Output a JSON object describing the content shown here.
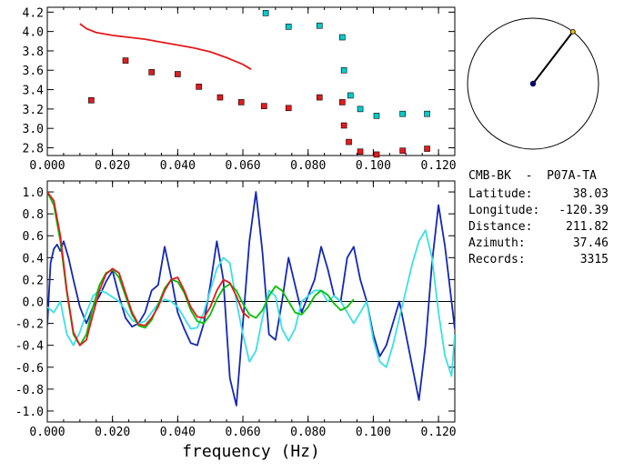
{
  "chart_data": [
    {
      "type": "scatter",
      "title": "",
      "xlabel": "",
      "ylabel": "",
      "xlim": [
        0.0,
        0.125
      ],
      "ylim": [
        2.72,
        4.25
      ],
      "x_ticks": [
        "0.000",
        "0.020",
        "0.040",
        "0.060",
        "0.080",
        "0.100",
        "0.120"
      ],
      "y_ticks": [
        "2.8",
        "3.0",
        "3.2",
        "3.4",
        "3.6",
        "3.8",
        "4.0",
        "4.2"
      ],
      "series": [
        {
          "kind": "line",
          "color": "#e41a1c",
          "x": [
            0.01,
            0.012,
            0.015,
            0.02,
            0.025,
            0.03,
            0.035,
            0.04,
            0.045,
            0.05,
            0.055,
            0.06,
            0.0625
          ],
          "y": [
            4.08,
            4.03,
            3.99,
            3.96,
            3.94,
            3.92,
            3.89,
            3.86,
            3.83,
            3.79,
            3.73,
            3.66,
            3.61
          ]
        },
        {
          "kind": "markers",
          "color": "#e41a1c",
          "x": [
            0.0135,
            0.024,
            0.032,
            0.04,
            0.0465,
            0.053,
            0.0595,
            0.0665,
            0.074,
            0.0835,
            0.0905,
            0.091,
            0.0925,
            0.096,
            0.101,
            0.109,
            0.1165
          ],
          "y": [
            3.29,
            3.7,
            3.58,
            3.56,
            3.43,
            3.32,
            3.27,
            3.23,
            3.21,
            3.32,
            3.27,
            3.03,
            2.86,
            2.76,
            2.73,
            2.77,
            2.79
          ]
        },
        {
          "kind": "markers",
          "color": "#00cccc",
          "x": [
            0.067,
            0.074,
            0.0835,
            0.0905,
            0.091,
            0.093,
            0.096,
            0.101,
            0.109,
            0.1165
          ],
          "y": [
            4.19,
            4.05,
            4.06,
            3.94,
            3.6,
            3.34,
            3.2,
            3.13,
            3.15,
            3.15
          ]
        }
      ]
    },
    {
      "type": "line",
      "title": "",
      "xlabel": "frequency (Hz)",
      "ylabel": "",
      "xlim": [
        0.0,
        0.125
      ],
      "ylim": [
        -1.1,
        1.1
      ],
      "x_ticks": [
        "0.000",
        "0.020",
        "0.040",
        "0.060",
        "0.080",
        "0.100",
        "0.120"
      ],
      "y_ticks": [
        "-1.0",
        "-0.8",
        "-0.6",
        "-0.4",
        "-0.2",
        "0.0",
        "0.2",
        "0.4",
        "0.6",
        "0.8",
        "1.0"
      ],
      "zero_line": true,
      "series": [
        {
          "color": "#1428b4",
          "x": [
            0.0,
            0.001,
            0.002,
            0.003,
            0.004,
            0.005,
            0.0065,
            0.008,
            0.01,
            0.012,
            0.014,
            0.016,
            0.018,
            0.02,
            0.022,
            0.024,
            0.026,
            0.028,
            0.03,
            0.032,
            0.034,
            0.036,
            0.038,
            0.04,
            0.042,
            0.044,
            0.046,
            0.048,
            0.05,
            0.052,
            0.054,
            0.056,
            0.058,
            0.06,
            0.062,
            0.064,
            0.066,
            0.068,
            0.07,
            0.072,
            0.074,
            0.076,
            0.078,
            0.08,
            0.082,
            0.084,
            0.086,
            0.088,
            0.09,
            0.092,
            0.094,
            0.096,
            0.098,
            0.1,
            0.102,
            0.104,
            0.106,
            0.108,
            0.11,
            0.112,
            0.114,
            0.116,
            0.118,
            0.12,
            0.122,
            0.124,
            0.125
          ],
          "y": [
            -0.22,
            0.35,
            0.48,
            0.52,
            0.46,
            0.55,
            0.4,
            0.2,
            -0.05,
            -0.2,
            -0.05,
            0.05,
            0.18,
            0.28,
            0.05,
            -0.15,
            -0.23,
            -0.2,
            -0.1,
            0.1,
            0.15,
            0.5,
            0.22,
            -0.1,
            -0.25,
            -0.38,
            -0.4,
            -0.2,
            0.15,
            0.55,
            0.2,
            -0.7,
            -0.95,
            -0.2,
            0.55,
            1.0,
            0.45,
            -0.3,
            -0.35,
            0.0,
            0.4,
            0.15,
            -0.1,
            0.05,
            0.2,
            0.5,
            0.3,
            0.05,
            0.0,
            0.4,
            0.5,
            0.2,
            0.0,
            -0.3,
            -0.5,
            -0.4,
            -0.2,
            0.0,
            -0.3,
            -0.6,
            -0.9,
            -0.4,
            0.35,
            0.88,
            0.5,
            0.0,
            -0.25
          ]
        },
        {
          "color": "#3ae0e8",
          "x": [
            0.0,
            0.002,
            0.004,
            0.006,
            0.008,
            0.01,
            0.012,
            0.014,
            0.016,
            0.018,
            0.02,
            0.022,
            0.024,
            0.026,
            0.028,
            0.03,
            0.032,
            0.034,
            0.036,
            0.038,
            0.04,
            0.042,
            0.044,
            0.046,
            0.048,
            0.05,
            0.052,
            0.054,
            0.056,
            0.058,
            0.06,
            0.062,
            0.064,
            0.066,
            0.068,
            0.07,
            0.072,
            0.074,
            0.076,
            0.078,
            0.08,
            0.082,
            0.084,
            0.086,
            0.088,
            0.09,
            0.092,
            0.094,
            0.096,
            0.098,
            0.1,
            0.102,
            0.104,
            0.106,
            0.108,
            0.11,
            0.112,
            0.114,
            0.116,
            0.118,
            0.12,
            0.122,
            0.124,
            0.125
          ],
          "y": [
            -0.05,
            -0.1,
            0.0,
            -0.3,
            -0.4,
            -0.28,
            -0.1,
            0.05,
            0.1,
            0.08,
            0.04,
            0.0,
            -0.08,
            -0.17,
            -0.2,
            -0.18,
            -0.1,
            -0.02,
            0.02,
            0.0,
            -0.05,
            -0.15,
            -0.25,
            -0.24,
            -0.1,
            0.1,
            0.3,
            0.4,
            0.35,
            0.0,
            -0.3,
            -0.55,
            -0.45,
            -0.15,
            0.1,
            0.05,
            -0.25,
            -0.36,
            -0.25,
            0.0,
            0.05,
            0.1,
            0.1,
            0.0,
            0.05,
            0.0,
            -0.1,
            -0.2,
            -0.1,
            0.0,
            -0.35,
            -0.55,
            -0.6,
            -0.4,
            -0.15,
            0.1,
            0.35,
            0.55,
            0.65,
            0.4,
            -0.1,
            -0.5,
            -0.68,
            -0.3
          ]
        },
        {
          "color": "#00c000",
          "x": [
            0.0,
            0.002,
            0.004,
            0.006,
            0.008,
            0.01,
            0.012,
            0.014,
            0.016,
            0.018,
            0.02,
            0.022,
            0.024,
            0.026,
            0.028,
            0.03,
            0.032,
            0.034,
            0.036,
            0.038,
            0.04,
            0.042,
            0.044,
            0.046,
            0.048,
            0.05,
            0.052,
            0.054,
            0.056,
            0.058,
            0.06,
            0.062,
            0.064,
            0.066,
            0.068,
            0.07,
            0.072,
            0.074,
            0.076,
            0.078,
            0.08,
            0.082,
            0.084,
            0.086,
            0.088,
            0.09,
            0.092,
            0.094
          ],
          "y": [
            1.0,
            0.88,
            0.55,
            0.08,
            -0.3,
            -0.4,
            -0.3,
            -0.05,
            0.15,
            0.26,
            0.29,
            0.22,
            0.05,
            -0.12,
            -0.22,
            -0.24,
            -0.17,
            -0.03,
            0.12,
            0.2,
            0.18,
            0.08,
            -0.08,
            -0.18,
            -0.2,
            -0.12,
            0.02,
            0.12,
            0.16,
            0.1,
            -0.02,
            -0.12,
            -0.15,
            -0.08,
            0.05,
            0.14,
            0.1,
            0.0,
            -0.1,
            -0.12,
            -0.05,
            0.05,
            0.1,
            0.06,
            -0.02,
            -0.08,
            -0.05,
            0.02
          ]
        },
        {
          "color": "#e41a1c",
          "x": [
            0.0,
            0.002,
            0.004,
            0.006,
            0.008,
            0.01,
            0.012,
            0.014,
            0.016,
            0.018,
            0.02,
            0.022,
            0.024,
            0.026,
            0.028,
            0.03,
            0.032,
            0.034,
            0.036,
            0.038,
            0.04,
            0.042,
            0.044,
            0.046,
            0.048,
            0.05,
            0.052,
            0.054,
            0.056,
            0.058,
            0.06,
            0.062
          ],
          "y": [
            1.0,
            0.92,
            0.6,
            0.1,
            -0.28,
            -0.4,
            -0.35,
            -0.12,
            0.1,
            0.25,
            0.3,
            0.26,
            0.08,
            -0.1,
            -0.21,
            -0.22,
            -0.15,
            -0.05,
            0.1,
            0.2,
            0.22,
            0.1,
            -0.05,
            -0.14,
            -0.15,
            -0.05,
            0.1,
            0.2,
            0.17,
            0.05,
            -0.1,
            -0.15
          ]
        }
      ]
    }
  ],
  "map_inset": {
    "circle_color": "#000000",
    "station_point_color": "#000080",
    "end_point_color": "#f0c000",
    "azimuth_deg": 37.46
  },
  "station_info": {
    "header": "CMB-BK  -  P07A-TA",
    "rows": [
      {
        "label": "Latitude:",
        "value": "38.03"
      },
      {
        "label": "Longitude:",
        "value": "-120.39"
      },
      {
        "label": "Distance:",
        "value": "211.82"
      },
      {
        "label": "Azimuth:",
        "value": "37.46"
      },
      {
        "label": "Records:",
        "value": "3315"
      }
    ]
  }
}
